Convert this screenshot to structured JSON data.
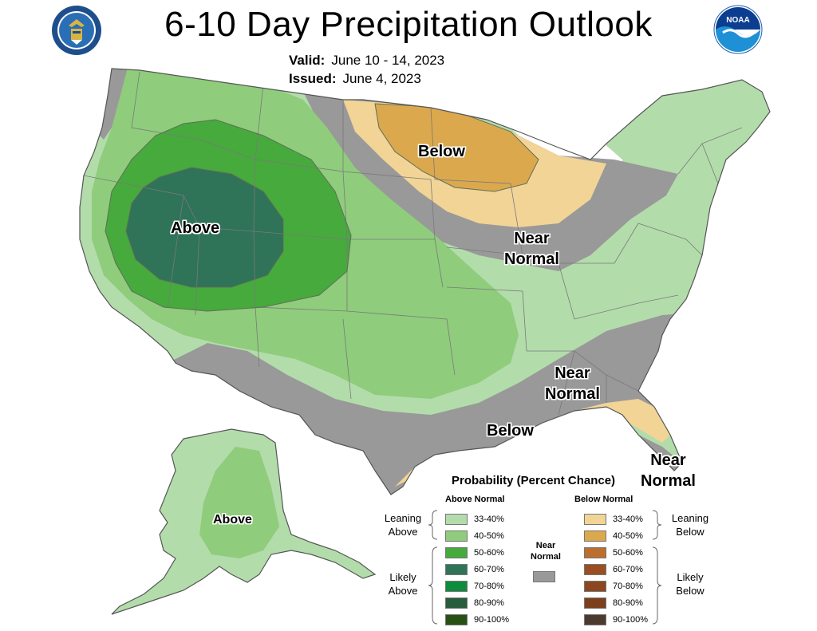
{
  "title": "6-10 Day Precipitation Outlook",
  "valid": {
    "label": "Valid:",
    "value": "June 10 - 14, 2023"
  },
  "issued": {
    "label": "Issued:",
    "value": "June 4, 2023"
  },
  "logos": {
    "left": "department-of-commerce-seal",
    "right": "noaa-logo"
  },
  "colors": {
    "above_33_40": "#b3dcab",
    "above_40_50": "#8fcc7c",
    "above_50_60": "#46aa3c",
    "above_60_70": "#2f7358",
    "above_70_80": "#0c8c3c",
    "above_80_90": "#275c3c",
    "above_90_100": "#285014",
    "below_33_40": "#f1d496",
    "below_40_50": "#dba84e",
    "below_50_60": "#bb6e2d",
    "below_60_70": "#9b4e22",
    "below_70_80": "#8c4720",
    "below_80_90": "#7c3f1d",
    "below_90_100": "#4d3a2f",
    "near_normal": "#999999",
    "no_data": "#ffffff"
  },
  "map_labels": {
    "above_west": "Above",
    "below_north": "Below",
    "near_normal_midwest": [
      "Near",
      "Normal"
    ],
    "near_normal_southeast": [
      "Near",
      "Normal"
    ],
    "below_gulf": "Below",
    "near_normal_florida": [
      "Near",
      "Normal"
    ],
    "above_alaska": "Above"
  },
  "legend": {
    "title": "Probability (Percent Chance)",
    "above_header": "Above Normal",
    "below_header": "Below Normal",
    "near_normal": [
      "Near",
      "Normal"
    ],
    "groups": {
      "leaning_above": [
        "Leaning",
        "Above"
      ],
      "likely_above": [
        "Likely",
        "Above"
      ],
      "leaning_below": [
        "Leaning",
        "Below"
      ],
      "likely_below": [
        "Likely",
        "Below"
      ]
    },
    "above_rows": [
      {
        "label": "33-40%",
        "color": "#b3dcab"
      },
      {
        "label": "40-50%",
        "color": "#8fcc7c"
      },
      {
        "label": "50-60%",
        "color": "#46aa3c"
      },
      {
        "label": "60-70%",
        "color": "#2f7358"
      },
      {
        "label": "70-80%",
        "color": "#0c8c3c"
      },
      {
        "label": "80-90%",
        "color": "#275c3c"
      },
      {
        "label": "90-100%",
        "color": "#285014"
      }
    ],
    "below_rows": [
      {
        "label": "33-40%",
        "color": "#f1d496"
      },
      {
        "label": "40-50%",
        "color": "#dba84e"
      },
      {
        "label": "50-60%",
        "color": "#bb6e2d"
      },
      {
        "label": "60-70%",
        "color": "#9b4e22"
      },
      {
        "label": "70-80%",
        "color": "#8c4720"
      },
      {
        "label": "80-90%",
        "color": "#7c3f1d"
      },
      {
        "label": "90-100%",
        "color": "#4d3a2f"
      }
    ]
  }
}
